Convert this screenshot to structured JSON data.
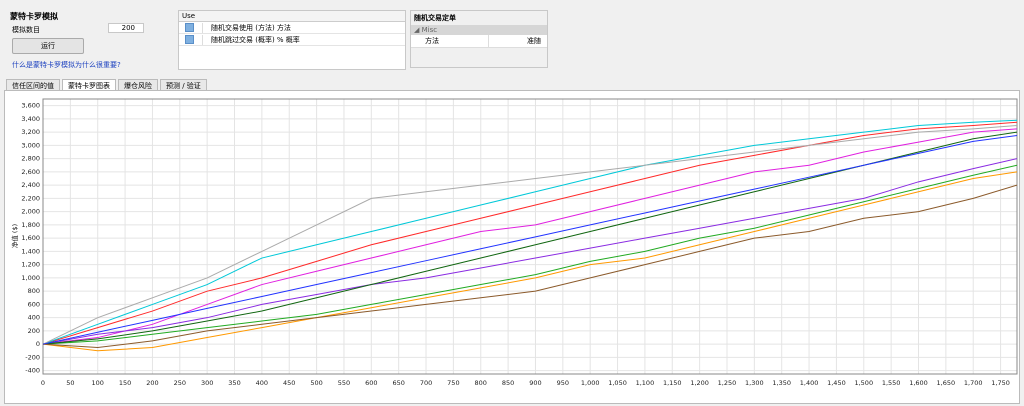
{
  "header": {
    "title": "蒙特卡罗模拟",
    "count_label": "模拟数目",
    "count_value": 200,
    "run_button": "运行",
    "help_link": "什么是蒙特卡罗模拟为什么很重要?"
  },
  "use_table": {
    "header": "Use",
    "rows": [
      {
        "checked": true,
        "label": "随机交易使用 (方法) 方法"
      },
      {
        "checked": true,
        "label": "随机跳过交易 (概率) % 概率"
      }
    ]
  },
  "order_panel": {
    "title": "随机交易定单",
    "group": "Misc",
    "rows": [
      [
        "方法",
        "准随"
      ]
    ]
  },
  "tabs": [
    "信任区间的值",
    "蒙特卡罗图表",
    "爆仓风险",
    "预测 / 验证"
  ],
  "chart_data": {
    "type": "line",
    "y_label": "净值 ($)",
    "x": [
      0,
      100,
      200,
      300,
      400,
      500,
      600,
      700,
      800,
      900,
      1000,
      1100,
      1200,
      1300,
      1400,
      1500,
      1600,
      1700,
      1780
    ],
    "series": [
      {
        "color": "#ff2a2a",
        "values": [
          0,
          250,
          500,
          800,
          1000,
          1250,
          1500,
          1700,
          1900,
          2100,
          2300,
          2500,
          2700,
          2850,
          3000,
          3150,
          3250,
          3300,
          3350
        ]
      },
      {
        "color": "#22aa22",
        "values": [
          0,
          50,
          150,
          250,
          350,
          450,
          600,
          750,
          900,
          1050,
          1250,
          1400,
          1600,
          1750,
          1950,
          2150,
          2350,
          2550,
          2700
        ]
      },
      {
        "color": "#e020e0",
        "values": [
          0,
          100,
          300,
          600,
          900,
          1100,
          1300,
          1500,
          1700,
          1800,
          2000,
          2200,
          2400,
          2600,
          2700,
          2900,
          3050,
          3200,
          3250
        ]
      },
      {
        "color": "#ff9900",
        "values": [
          0,
          -100,
          -50,
          100,
          250,
          400,
          550,
          700,
          850,
          1000,
          1200,
          1300,
          1500,
          1700,
          1900,
          2100,
          2300,
          2500,
          2600
        ]
      },
      {
        "color": "#00c8d8",
        "values": [
          0,
          300,
          600,
          900,
          1300,
          1500,
          1700,
          1900,
          2100,
          2300,
          2500,
          2700,
          2850,
          3000,
          3100,
          3200,
          3300,
          3350,
          3380
        ]
      },
      {
        "color": "#aaaaaa",
        "values": [
          0,
          400,
          700,
          1000,
          1400,
          1800,
          2200,
          2300,
          2400,
          2500,
          2600,
          2700,
          2800,
          2900,
          3000,
          3100,
          3200,
          3250,
          3300
        ]
      },
      {
        "color": "#8a2be2",
        "values": [
          0,
          150,
          250,
          400,
          600,
          750,
          900,
          1000,
          1150,
          1300,
          1450,
          1600,
          1750,
          1900,
          2050,
          2200,
          2450,
          2650,
          2800
        ]
      },
      {
        "color": "#116611",
        "values": [
          0,
          80,
          200,
          350,
          500,
          700,
          900,
          1100,
          1300,
          1500,
          1700,
          1900,
          2100,
          2300,
          2500,
          2700,
          2900,
          3100,
          3200
        ]
      },
      {
        "color": "#8b5a2b",
        "values": [
          0,
          -50,
          50,
          200,
          300,
          400,
          500,
          600,
          700,
          800,
          1000,
          1200,
          1400,
          1600,
          1700,
          1900,
          2000,
          2200,
          2400
        ]
      },
      {
        "color": "#2233ff",
        "values": [
          0,
          180,
          360,
          540,
          720,
          900,
          1080,
          1260,
          1440,
          1620,
          1800,
          1980,
          2160,
          2340,
          2520,
          2700,
          2880,
          3060,
          3150
        ]
      }
    ],
    "xlim": [
      0,
      1780
    ],
    "ylim": [
      -450,
      3700
    ],
    "xticks": [
      0,
      50,
      100,
      150,
      200,
      250,
      300,
      350,
      400,
      450,
      500,
      550,
      600,
      650,
      700,
      750,
      800,
      850,
      900,
      950,
      {
        "value": 1000,
        "label": "1,000"
      },
      {
        "value": 1050,
        "label": "1,050"
      },
      {
        "value": 1100,
        "label": "1,100"
      },
      {
        "value": 1150,
        "label": "1,150"
      },
      {
        "value": 1200,
        "label": "1,200"
      },
      {
        "value": 1250,
        "label": "1,250"
      },
      {
        "value": 1300,
        "label": "1,300"
      },
      {
        "value": 1350,
        "label": "1,350"
      },
      {
        "value": 1400,
        "label": "1,400"
      },
      {
        "value": 1450,
        "label": "1,450"
      },
      {
        "value": 1500,
        "label": "1,500"
      },
      {
        "value": 1550,
        "label": "1,550"
      },
      {
        "value": 1600,
        "label": "1,600"
      },
      {
        "value": 1650,
        "label": "1,650"
      },
      {
        "value": 1700,
        "label": "1,700"
      },
      {
        "value": 1750,
        "label": "1,750"
      }
    ],
    "yticks": [
      -400,
      -200,
      0,
      200,
      400,
      600,
      800,
      {
        "value": 1000,
        "label": "1,000"
      },
      {
        "value": 1200,
        "label": "1,200"
      },
      {
        "value": 1400,
        "label": "1,400"
      },
      {
        "value": 1600,
        "label": "1,600"
      },
      {
        "value": 1800,
        "label": "1,800"
      },
      {
        "value": 2000,
        "label": "2,000"
      },
      {
        "value": 2200,
        "label": "2,200"
      },
      {
        "value": 2400,
        "label": "2,400"
      },
      {
        "value": 2600,
        "label": "2,600"
      },
      {
        "value": 2800,
        "label": "2,800"
      },
      {
        "value": 3000,
        "label": "3,000"
      },
      {
        "value": 3200,
        "label": "3,200"
      },
      {
        "value": 3400,
        "label": "3,400"
      },
      {
        "value": 3600,
        "label": "3,600"
      }
    ],
    "grid": true
  }
}
